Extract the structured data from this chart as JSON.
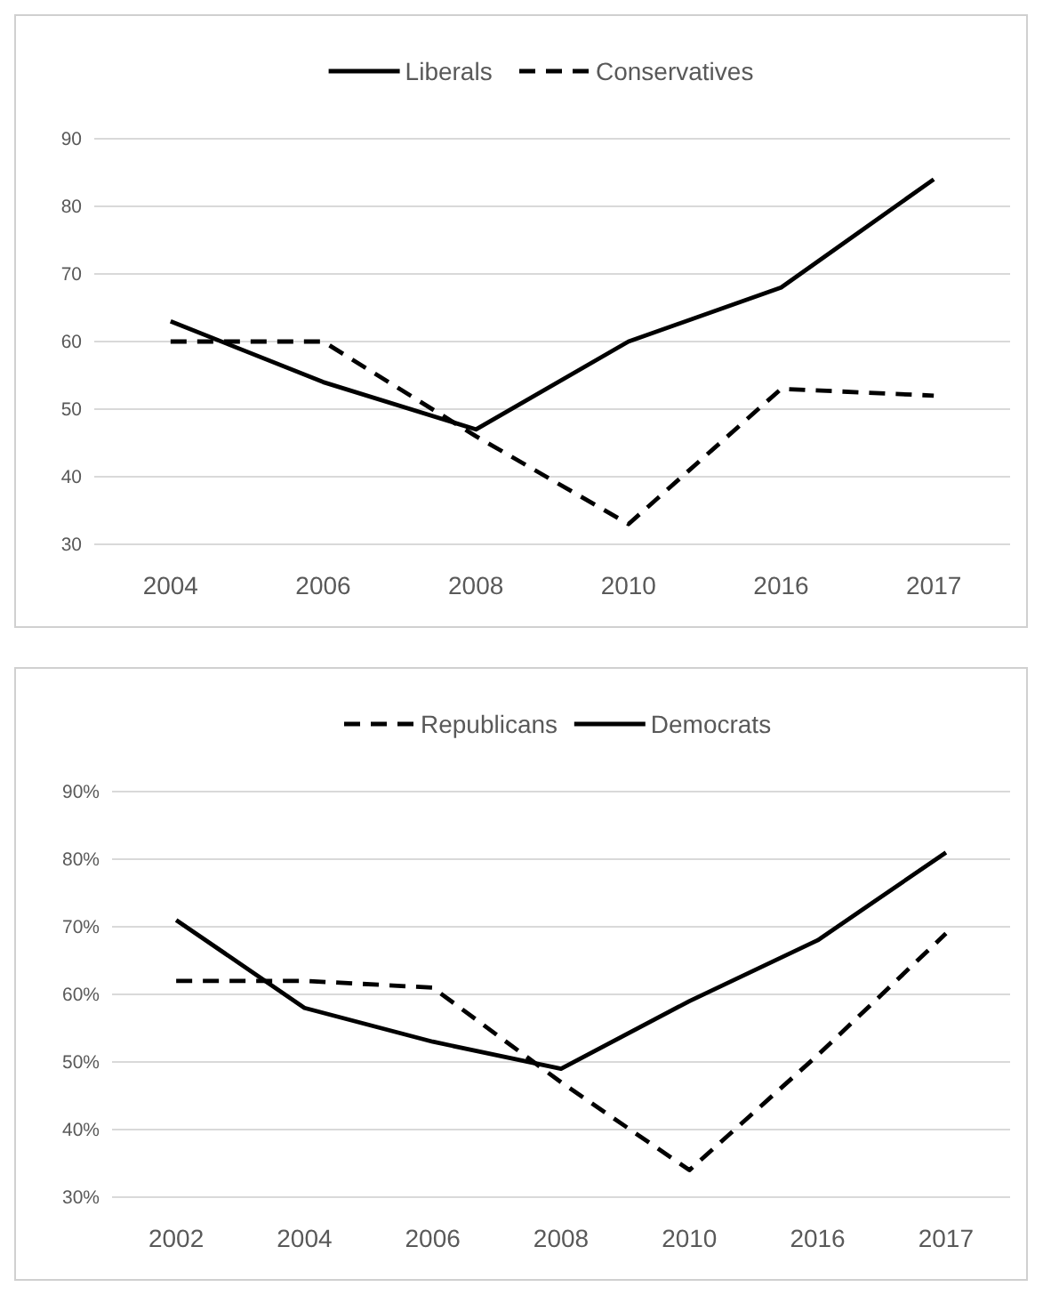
{
  "chart_data": [
    {
      "type": "line",
      "categories": [
        "2004",
        "2006",
        "2008",
        "2010",
        "2016",
        "2017"
      ],
      "ylim": [
        30,
        90
      ],
      "yticks": [
        30,
        40,
        50,
        60,
        70,
        80,
        90
      ],
      "grid": "y",
      "legend": "top",
      "series": [
        {
          "name": "Liberals",
          "color": "#000000",
          "line_style": "solid",
          "values": [
            63,
            54,
            47,
            60,
            68,
            84
          ]
        },
        {
          "name": "Conservatives",
          "color": "#000000",
          "line_style": "dashed",
          "values": [
            60,
            60,
            46,
            33,
            53,
            52
          ]
        }
      ]
    },
    {
      "type": "line",
      "categories": [
        "2002",
        "2004",
        "2006",
        "2008",
        "2010",
        "2016",
        "2017"
      ],
      "ylim": [
        30,
        90
      ],
      "yticks": [
        {
          "value": 30,
          "label": "30%"
        },
        {
          "value": 40,
          "label": "40%"
        },
        {
          "value": 50,
          "label": "50%"
        },
        {
          "value": 60,
          "label": "60%"
        },
        {
          "value": 70,
          "label": "70%"
        },
        {
          "value": 80,
          "label": "80%"
        },
        {
          "value": 90,
          "label": "90%"
        }
      ],
      "grid": "y",
      "legend": "top",
      "series": [
        {
          "name": "Republicans",
          "color": "#000000",
          "line_style": "dashed",
          "values": [
            62,
            62,
            61,
            47,
            34,
            51,
            69
          ]
        },
        {
          "name": "Democrats",
          "color": "#000000",
          "line_style": "solid",
          "values": [
            71,
            58,
            53,
            49,
            59,
            68,
            81
          ]
        }
      ]
    }
  ]
}
